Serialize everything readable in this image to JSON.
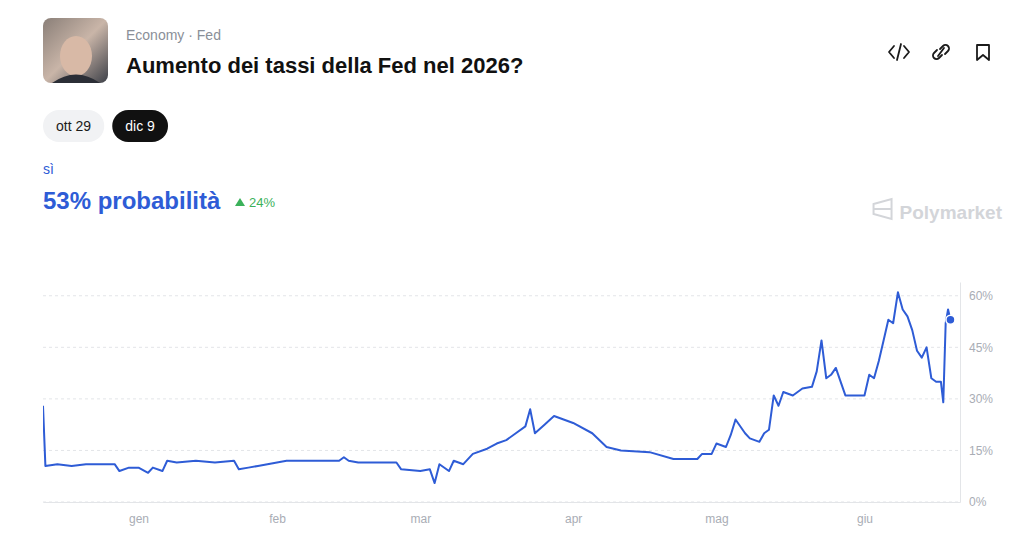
{
  "header": {
    "breadcrumb": "Economy · Fed",
    "tabs": [
      {
        "label": "ott 29"
      },
      {
        "label": "dic 9",
        "selected": true
      }
    ],
    "probability": "53% probabilità",
    "change": "24%",
    "watermark": "Polymarket"
  },
  "chart_data": {
    "type": "line",
    "title": "Aumento dei tassi della Fed nel 2026?",
    "x": [
      0,
      0.5,
      3,
      6,
      9,
      12,
      15,
      16,
      18,
      20,
      22,
      23,
      25,
      26,
      28,
      32,
      36,
      40,
      41,
      43,
      45,
      49,
      51,
      55,
      59,
      62,
      63,
      64,
      66,
      70,
      74,
      75,
      79,
      81,
      82,
      83,
      85,
      86,
      88,
      90,
      93,
      95,
      97,
      99,
      101,
      102,
      103,
      105,
      107,
      111,
      115,
      118,
      121,
      127,
      132,
      137,
      138,
      140,
      141,
      143,
      144,
      145,
      147,
      148,
      150,
      151,
      152,
      153,
      154,
      155,
      157,
      159,
      161,
      162,
      163,
      164,
      165,
      166,
      168,
      171,
      172,
      173,
      174,
      175,
      176,
      177,
      178,
      179,
      180,
      181,
      182,
      183,
      184,
      185,
      186,
      187,
      188,
      188.5,
      189,
      189.5,
      190
    ],
    "series": [
      {
        "name": "sì",
        "color": "#2e5cd6",
        "marker": "end",
        "values": [
          28,
          10.5,
          11,
          10.5,
          11,
          11,
          11,
          9,
          10,
          10,
          8.5,
          10,
          9,
          12,
          11.5,
          12,
          11.5,
          12,
          9.5,
          10,
          10.5,
          11.5,
          12,
          12,
          12,
          12,
          13,
          12,
          11.5,
          11.5,
          11.5,
          9.5,
          9,
          9.5,
          5.5,
          11,
          9,
          12,
          11,
          14,
          15.5,
          17,
          18,
          20,
          22,
          27,
          20,
          22.5,
          25,
          23,
          20,
          16,
          15,
          14.5,
          12.5,
          12.5,
          14,
          14,
          17,
          16,
          19.5,
          24,
          20,
          18.5,
          17.5,
          20,
          21,
          31,
          28,
          32,
          31,
          33,
          33.5,
          38,
          47,
          36,
          37,
          39,
          31,
          31,
          31,
          37,
          36,
          41,
          47,
          53,
          52,
          61,
          56,
          54,
          50,
          44,
          42,
          45,
          36,
          35,
          35,
          29,
          52,
          56,
          53
        ]
      }
    ],
    "xlim": [
      0,
      192
    ],
    "xticks": [
      {
        "value": 20,
        "label": "gen"
      },
      {
        "value": 49,
        "label": "feb"
      },
      {
        "value": 79,
        "label": "mar"
      },
      {
        "value": 111,
        "label": "apr"
      },
      {
        "value": 141,
        "label": "mag"
      },
      {
        "value": 172,
        "label": "giu"
      }
    ],
    "ylim": [
      0,
      64
    ],
    "yticks": [
      {
        "value": 0,
        "label": "0%"
      },
      {
        "value": 15,
        "label": "15%"
      },
      {
        "value": 30,
        "label": "30%"
      },
      {
        "value": 45,
        "label": "45%"
      },
      {
        "value": 60,
        "label": "60%"
      }
    ],
    "grid": true
  }
}
